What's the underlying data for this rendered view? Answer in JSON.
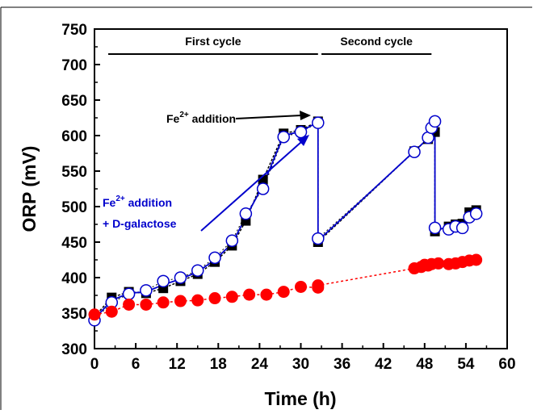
{
  "chart_data": {
    "type": "line",
    "xlabel": "Time (h)",
    "ylabel": "ORP (mV)",
    "xlim": [
      0,
      60
    ],
    "ylim": [
      300,
      750
    ],
    "xticks": [
      0,
      6,
      12,
      18,
      24,
      30,
      36,
      42,
      48,
      54,
      60
    ],
    "yticks": [
      300,
      350,
      400,
      450,
      500,
      550,
      600,
      650,
      700,
      750
    ],
    "xtick_labels": [
      "0",
      "6",
      "12",
      "18",
      "24",
      "30",
      "36",
      "42",
      "48",
      "54",
      "60"
    ],
    "ytick_labels": [
      "300",
      "350",
      "400",
      "450",
      "500",
      "550",
      "600",
      "650",
      "700",
      "750"
    ],
    "grid": false,
    "series": [
      {
        "marker": "filled-square",
        "color": "#000000",
        "x": [
          0,
          2.5,
          5,
          7.5,
          10,
          12.5,
          15,
          17.5,
          20,
          22,
          24.5,
          27.5,
          30,
          32.5,
          32.5,
          46.5,
          48.5,
          49.5,
          49.5,
          51.5,
          52.5,
          53.5,
          54.5,
          55.5
        ],
        "y": [
          345,
          372,
          380,
          378,
          385,
          395,
          405,
          422,
          445,
          480,
          538,
          603,
          608,
          620,
          450,
          578,
          595,
          605,
          465,
          472,
          475,
          476,
          492,
          495
        ]
      },
      {
        "marker": "open-circle",
        "color": "#000000",
        "x": [
          0,
          2.5,
          5,
          7.5,
          10,
          12.5,
          15,
          17.5,
          20,
          22,
          24.5,
          27.5,
          30,
          32.5,
          32.5,
          46.5,
          48.5,
          49,
          49.5,
          49.5,
          51.5,
          52.5,
          53.5,
          54.5,
          55.5
        ],
        "y": [
          340,
          365,
          377,
          382,
          395,
          400,
          410,
          428,
          452,
          490,
          525,
          598,
          605,
          618,
          455,
          577,
          597,
          611,
          620,
          470,
          468,
          472,
          470,
          485,
          490
        ]
      },
      {
        "marker": "filled-circle",
        "color": "#ff0000",
        "x": [
          0,
          2.5,
          5,
          7.5,
          10,
          12.5,
          15,
          17.5,
          20,
          22.5,
          25,
          27.5,
          30,
          32.5,
          32.5,
          46.5,
          47.5,
          48,
          48.5,
          49,
          50,
          51.5,
          52.5,
          53.5,
          54.5,
          55.5
        ],
        "y": [
          348,
          352,
          362,
          362,
          365,
          367,
          368,
          371,
          373,
          376,
          376,
          380,
          387,
          386,
          389,
          413,
          415,
          418,
          417,
          419,
          420,
          419,
          420,
          422,
          424,
          425
        ]
      }
    ],
    "blue_line": {
      "color": "#0000cc",
      "x": [
        0,
        2.5,
        5,
        7.5,
        10,
        12.5,
        15,
        17.5,
        20,
        22,
        24.5,
        27.5,
        30,
        32.5,
        32.5,
        46.5,
        48.5,
        49.5,
        49.5,
        51.5,
        52.5,
        53.5,
        54.5,
        55.5
      ],
      "y": [
        342,
        368,
        378,
        380,
        390,
        398,
        408,
        425,
        448,
        485,
        530,
        600,
        606,
        619,
        452,
        578,
        596,
        612,
        468,
        470,
        473,
        474,
        488,
        492
      ]
    },
    "cycles": [
      {
        "label": "First cycle",
        "x_start": 2,
        "x_end": 32.5
      },
      {
        "label": "Second cycle",
        "x_start": 33,
        "x_end": 49
      }
    ],
    "annotations": [
      {
        "text_main": "Fe",
        "sup": "2+",
        "text_rest": " addition",
        "color": "#000000"
      },
      {
        "text_main": "Fe",
        "sup": "2+",
        "text_rest": " addition",
        "line2": "+ D-galactose",
        "color": "#0000cc"
      }
    ]
  }
}
